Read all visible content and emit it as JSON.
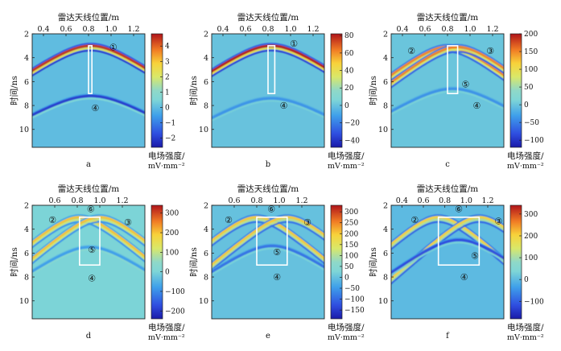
{
  "chart_data": [
    {
      "type": "heatmap",
      "caption": "a",
      "xlabel": "雷达天线位置/m",
      "ylabel": "时间/ns",
      "xlim": [
        0.3,
        1.3
      ],
      "ylim": [
        11.5,
        2.0
      ],
      "xticks": [
        "0.4",
        "0.6",
        "0.8",
        "1.0",
        "1.2"
      ],
      "yticks": [
        "2",
        "4",
        "6",
        "8",
        "10"
      ],
      "colorbar": {
        "label_line1": "电场强度/",
        "label_line2": "mV·mm⁻²",
        "range": [
          -2.6,
          4.8
        ],
        "ticks": [
          "4",
          "3",
          "2",
          "1",
          "0",
          "−1",
          "−2"
        ]
      },
      "markers": [
        {
          "label": "①",
          "x": 1.02,
          "t": 3.1
        },
        {
          "label": "④",
          "x": 0.86,
          "t": 8.2
        }
      ],
      "window": {
        "x0": 0.8,
        "x1": 0.83,
        "t0": 3.0,
        "t1": 7.0
      },
      "hyperbolas": [
        {
          "apex_x": 0.82,
          "apex_t": 3.0,
          "spread": 0.25,
          "amplitude": 4.5
        },
        {
          "apex_x": 0.82,
          "apex_t": 7.2,
          "spread": 0.3,
          "amplitude": -2.0
        }
      ]
    },
    {
      "type": "heatmap",
      "caption": "b",
      "xlabel": "雷达天线位置/m",
      "ylabel": "时间/ns",
      "xlim": [
        0.3,
        1.3
      ],
      "ylim": [
        11.5,
        2.0
      ],
      "xticks": [
        "0.4",
        "0.6",
        "0.8",
        "1.0",
        "1.2"
      ],
      "yticks": [
        "2",
        "4",
        "6",
        "8",
        "10"
      ],
      "colorbar": {
        "label_line1": "电场强度/",
        "label_line2": "mV·mm⁻²",
        "range": [
          -48,
          82
        ],
        "ticks": [
          "80",
          "60",
          "40",
          "20",
          "0",
          "−20",
          "−40"
        ]
      },
      "markers": [
        {
          "label": "①",
          "x": 1.03,
          "t": 2.8
        },
        {
          "label": "④",
          "x": 0.94,
          "t": 8.0
        }
      ],
      "window": {
        "x0": 0.8,
        "x1": 0.86,
        "t0": 3.0,
        "t1": 7.0
      },
      "hyperbolas": [
        {
          "apex_x": 0.83,
          "apex_t": 3.0,
          "spread": 0.25,
          "amplitude": 80
        },
        {
          "apex_x": 0.83,
          "apex_t": 7.4,
          "spread": 0.3,
          "amplitude": -15
        }
      ]
    },
    {
      "type": "heatmap",
      "caption": "c",
      "xlabel": "雷达天线位置/m",
      "ylabel": "时间/ns",
      "xlim": [
        0.3,
        1.3
      ],
      "ylim": [
        11.5,
        2.0
      ],
      "xticks": [
        "0.4",
        "0.6",
        "0.8",
        "1.0",
        "1.2"
      ],
      "yticks": [
        "2",
        "4",
        "6",
        "8",
        "10"
      ],
      "colorbar": {
        "label_line1": "电场强度/",
        "label_line2": "mV·mm⁻²",
        "range": [
          -120,
          200
        ],
        "ticks": [
          "200",
          "150",
          "100",
          "50",
          "0",
          "−50",
          "−100"
        ]
      },
      "markers": [
        {
          "label": "②",
          "x": 0.48,
          "t": 3.4
        },
        {
          "label": "③",
          "x": 1.18,
          "t": 3.4
        },
        {
          "label": "⑤",
          "x": 0.96,
          "t": 6.2
        },
        {
          "label": "④",
          "x": 1.06,
          "t": 8.0
        }
      ],
      "window": {
        "x0": 0.8,
        "x1": 0.89,
        "t0": 3.0,
        "t1": 7.0
      },
      "hyperbolas": [
        {
          "apex_x": 0.8,
          "apex_t": 3.1,
          "spread": 0.22,
          "amplitude": 150
        },
        {
          "apex_x": 0.89,
          "apex_t": 3.1,
          "spread": 0.22,
          "amplitude": 150
        },
        {
          "apex_x": 0.845,
          "apex_t": 6.6,
          "spread": 0.28,
          "amplitude": -40
        }
      ]
    },
    {
      "type": "heatmap",
      "caption": "d",
      "xlabel": "雷达天线位置/m",
      "ylabel": "时间/ns",
      "xlim": [
        0.4,
        1.4
      ],
      "ylim": [
        11.5,
        2.0
      ],
      "xticks": [
        "0.6",
        "0.8",
        "1.0",
        "1.2"
      ],
      "yticks": [
        "2",
        "4",
        "6",
        "8",
        "10"
      ],
      "colorbar": {
        "label_line1": "电场强度/",
        "label_line2": "mV·mm⁻²",
        "range": [
          -240,
          340
        ],
        "ticks": [
          "300",
          "200",
          "100",
          "0",
          "−100",
          "−200"
        ]
      },
      "markers": [
        {
          "label": "⑥",
          "x": 0.92,
          "t": 2.3
        },
        {
          "label": "②",
          "x": 0.58,
          "t": 3.2
        },
        {
          "label": "③",
          "x": 1.25,
          "t": 3.4
        },
        {
          "label": "⑤",
          "x": 0.93,
          "t": 5.7
        },
        {
          "label": "④",
          "x": 0.93,
          "t": 8.1
        }
      ],
      "window": {
        "x0": 0.82,
        "x1": 1.0,
        "t0": 3.0,
        "t1": 7.0
      },
      "hyperbolas": [
        {
          "apex_x": 0.82,
          "apex_t": 3.0,
          "spread": 0.2,
          "amplitude": 200
        },
        {
          "apex_x": 1.0,
          "apex_t": 3.0,
          "spread": 0.2,
          "amplitude": 200
        },
        {
          "apex_x": 0.91,
          "apex_t": 5.5,
          "spread": 0.25,
          "amplitude": -80
        }
      ]
    },
    {
      "type": "heatmap",
      "caption": "e",
      "xlabel": "雷达天线位置/m",
      "ylabel": "时间/ns",
      "xlim": [
        0.4,
        1.4
      ],
      "ylim": [
        11.5,
        2.0
      ],
      "xticks": [
        "0.6",
        "0.8",
        "1.0",
        "1.2"
      ],
      "yticks": [
        "2",
        "4",
        "6",
        "8",
        "10"
      ],
      "colorbar": {
        "label_line1": "电场强度/",
        "label_line2": "mV·mm⁻²",
        "range": [
          -190,
          330
        ],
        "ticks": [
          "300",
          "250",
          "200",
          "150",
          "100",
          "50",
          "0",
          "−50",
          "−100",
          "−150"
        ]
      },
      "markers": [
        {
          "label": "⑥",
          "x": 0.93,
          "t": 2.3
        },
        {
          "label": "②",
          "x": 0.55,
          "t": 3.2
        },
        {
          "label": "③",
          "x": 1.25,
          "t": 3.4
        },
        {
          "label": "⑤",
          "x": 0.98,
          "t": 5.9
        },
        {
          "label": "④",
          "x": 0.98,
          "t": 8.0
        }
      ],
      "window": {
        "x0": 0.8,
        "x1": 1.07,
        "t0": 3.0,
        "t1": 7.0
      },
      "hyperbolas": [
        {
          "apex_x": 0.8,
          "apex_t": 3.0,
          "spread": 0.2,
          "amplitude": 200
        },
        {
          "apex_x": 1.07,
          "apex_t": 3.0,
          "spread": 0.2,
          "amplitude": 200
        },
        {
          "apex_x": 0.935,
          "apex_t": 5.4,
          "spread": 0.25,
          "amplitude": -90
        }
      ]
    },
    {
      "type": "heatmap",
      "caption": "f",
      "xlabel": "雷达天线位置/m",
      "ylabel": "时间/ns",
      "xlim": [
        0.3,
        1.35
      ],
      "ylim": [
        11.5,
        2.0
      ],
      "xticks": [
        "0.4",
        "0.6",
        "0.8",
        "1.0",
        "1.2"
      ],
      "yticks": [
        "2",
        "4",
        "6",
        "8",
        "10"
      ],
      "colorbar": {
        "label_line1": "电场强度/",
        "label_line2": "mV·mm⁻²",
        "range": [
          -180,
          340
        ],
        "ticks": [
          "300",
          "200",
          "100",
          "0",
          "−100"
        ]
      },
      "markers": [
        {
          "label": "⑥",
          "x": 0.93,
          "t": 2.3
        },
        {
          "label": "②",
          "x": 0.52,
          "t": 3.2
        },
        {
          "label": "③",
          "x": 1.3,
          "t": 3.3
        },
        {
          "label": "⑤",
          "x": 1.08,
          "t": 6.2
        },
        {
          "label": "④",
          "x": 0.98,
          "t": 8.0
        }
      ],
      "window": {
        "x0": 0.74,
        "x1": 1.12,
        "t0": 3.0,
        "t1": 7.0
      },
      "hyperbolas": [
        {
          "apex_x": 0.74,
          "apex_t": 3.0,
          "spread": 0.2,
          "amplitude": 200
        },
        {
          "apex_x": 1.12,
          "apex_t": 3.0,
          "spread": 0.2,
          "amplitude": 200
        },
        {
          "apex_x": 0.93,
          "apex_t": 4.9,
          "spread": 0.25,
          "amplitude": -120
        }
      ]
    }
  ]
}
